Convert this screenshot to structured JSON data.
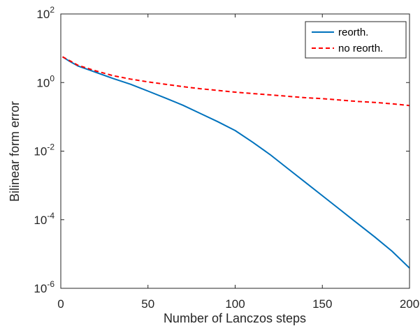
{
  "chart_data": {
    "type": "line",
    "title": "",
    "xlabel": "Number of Lanczos steps",
    "ylabel": "Bilinear form error",
    "xlim": [
      0,
      200
    ],
    "ylim_log10": [
      -6,
      2
    ],
    "yscale": "log",
    "x_ticks": [
      "0",
      "50",
      "100",
      "150",
      "200"
    ],
    "y_ticks": [
      {
        "base": "10",
        "exp": "2"
      },
      {
        "base": "10",
        "exp": "0"
      },
      {
        "base": "10",
        "exp": "-2"
      },
      {
        "base": "10",
        "exp": "-4"
      },
      {
        "base": "10",
        "exp": "-6"
      }
    ],
    "grid": false,
    "legend_position": "top-right",
    "x": [
      1,
      5,
      10,
      20,
      30,
      40,
      50,
      60,
      70,
      80,
      90,
      100,
      110,
      120,
      130,
      140,
      150,
      160,
      170,
      180,
      190,
      200
    ],
    "series": [
      {
        "name": "reorth.",
        "color": "#0072bd",
        "style": "solid",
        "log10_values": [
          0.75,
          0.62,
          0.48,
          0.3,
          0.12,
          -0.05,
          -0.25,
          -0.45,
          -0.66,
          -0.9,
          -1.14,
          -1.4,
          -1.74,
          -2.1,
          -2.5,
          -2.9,
          -3.3,
          -3.7,
          -4.1,
          -4.5,
          -4.92,
          -5.41
        ]
      },
      {
        "name": "no reorth.",
        "color": "#ff0000",
        "style": "dashed",
        "log10_values": [
          0.75,
          0.64,
          0.5,
          0.34,
          0.2,
          0.1,
          0.02,
          -0.05,
          -0.12,
          -0.18,
          -0.23,
          -0.28,
          -0.32,
          -0.36,
          -0.4,
          -0.44,
          -0.47,
          -0.51,
          -0.55,
          -0.58,
          -0.62,
          -0.67
        ]
      }
    ]
  }
}
